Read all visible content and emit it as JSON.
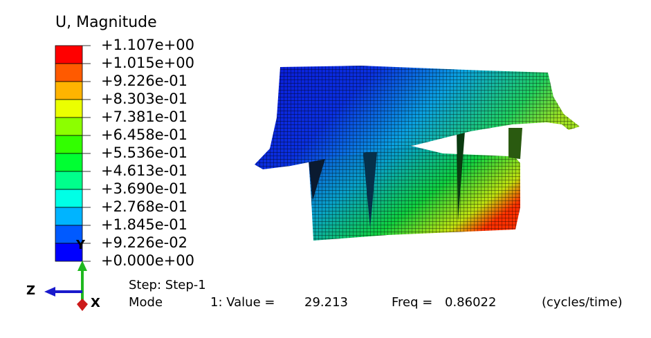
{
  "legend": {
    "title": "U, Magnitude",
    "labels": [
      "+1.107e+00",
      "+1.015e+00",
      "+9.226e-01",
      "+8.303e-01",
      "+7.381e-01",
      "+6.458e-01",
      "+5.536e-01",
      "+4.613e-01",
      "+3.690e-01",
      "+2.768e-01",
      "+1.845e-01",
      "+9.226e-02",
      "+0.000e+00"
    ],
    "colors": [
      "#ff0000",
      "#ff5a00",
      "#ffb400",
      "#ebff00",
      "#8cff00",
      "#32ff00",
      "#00ff32",
      "#00ff8c",
      "#00ffe6",
      "#00b4ff",
      "#005aff",
      "#0000ff"
    ]
  },
  "triad": {
    "y_label": "Y",
    "z_label": "Z",
    "x_label": "X",
    "colors": {
      "y": "#1fb81f",
      "z": "#1a1acc",
      "x": "#cc1a1a"
    }
  },
  "info": {
    "step_line": "Step: Step-1",
    "mode_label": "Mode",
    "mode_value": "1: Value =",
    "value": "29.213",
    "freq_label": "Freq =",
    "freq": "0.86022",
    "units": "(cycles/time)"
  }
}
